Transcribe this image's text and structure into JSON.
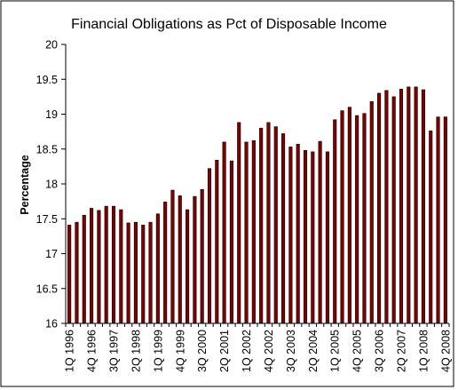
{
  "chart_data": {
    "type": "bar",
    "title": "Financial Obligations as Pct of Disposable Income",
    "xlabel": "",
    "ylabel": "Percentage",
    "ylim": [
      16,
      20
    ],
    "ytick_step": 0.5,
    "ytick_labels": [
      "16",
      "16.5",
      "17",
      "17.5",
      "18",
      "18.5",
      "19",
      "19.5",
      "20"
    ],
    "grid": false,
    "legend": "none",
    "bar_color": "#800000",
    "categories": [
      "1Q 1996",
      "2Q 1996",
      "3Q 1996",
      "4Q 1996",
      "1Q 1997",
      "2Q 1997",
      "3Q 1997",
      "4Q 1997",
      "1Q 1998",
      "2Q 1998",
      "3Q 1998",
      "4Q 1998",
      "1Q 1999",
      "2Q 1999",
      "3Q 1999",
      "4Q 1999",
      "1Q 2000",
      "2Q 2000",
      "3Q 2000",
      "4Q 2000",
      "1Q 2001",
      "2Q 2001",
      "3Q 2001",
      "4Q 2001",
      "1Q 2002",
      "2Q 2002",
      "3Q 2002",
      "4Q 2002",
      "1Q 2003",
      "2Q 2003",
      "3Q 2003",
      "4Q 2003",
      "1Q 2004",
      "2Q 2004",
      "3Q 2004",
      "4Q 2004",
      "1Q 2005",
      "2Q 2005",
      "3Q 2005",
      "4Q 2005",
      "1Q 2006",
      "2Q 2006",
      "3Q 2006",
      "4Q 2006",
      "1Q 2007",
      "2Q 2007",
      "3Q 2007",
      "4Q 2007",
      "1Q 2008",
      "2Q 2008",
      "3Q 2008",
      "4Q 2008"
    ],
    "x_tick_labels": [
      "1Q 1996",
      "4Q 1996",
      "3Q 1997",
      "2Q 1998",
      "1Q 1999",
      "4Q 1999",
      "3Q 2000",
      "2Q 2001",
      "1Q 2002",
      "4Q 2002",
      "3Q 2003",
      "2Q 2004",
      "1Q 2005",
      "4Q 2005",
      "3Q 2006",
      "2Q 2007",
      "1Q 2008",
      "4Q 2008"
    ],
    "values": [
      17.41,
      17.45,
      17.55,
      17.65,
      17.62,
      17.68,
      17.68,
      17.63,
      17.44,
      17.45,
      17.41,
      17.45,
      17.57,
      17.74,
      17.91,
      17.83,
      17.63,
      17.82,
      17.92,
      18.22,
      18.34,
      18.6,
      18.33,
      18.88,
      18.6,
      18.62,
      18.8,
      18.88,
      18.82,
      18.72,
      18.53,
      18.57,
      18.48,
      18.46,
      18.61,
      18.46,
      18.92,
      19.05,
      19.1,
      18.98,
      19.01,
      19.18,
      19.3,
      19.34,
      19.25,
      19.36,
      19.39,
      19.39,
      19.35,
      18.76,
      18.96,
      18.96
    ]
  }
}
